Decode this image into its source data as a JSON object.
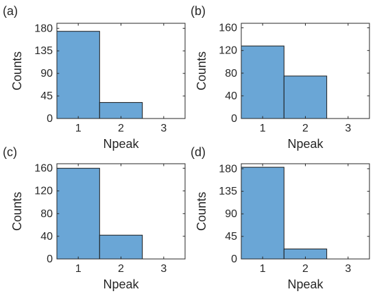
{
  "bar_color": "#6aa6d6",
  "edge_color": "#1a1a1a",
  "chart_data": [
    {
      "type": "bar",
      "panel_label": "(a)",
      "categories": [
        "1",
        "2",
        "3"
      ],
      "values": [
        174,
        32,
        0
      ],
      "xlabel": "Npeak",
      "ylabel": "Counts",
      "ylim": [
        0,
        190
      ],
      "yticks": [
        0,
        45,
        90,
        135,
        180
      ]
    },
    {
      "type": "bar",
      "panel_label": "(b)",
      "categories": [
        "1",
        "2",
        "3"
      ],
      "values": [
        128,
        75,
        0
      ],
      "xlabel": "Npeak",
      "ylabel": "Counts",
      "ylim": [
        0,
        168
      ],
      "yticks": [
        0,
        40,
        80,
        120,
        160
      ]
    },
    {
      "type": "bar",
      "panel_label": "(c)",
      "categories": [
        "1",
        "2",
        "3"
      ],
      "values": [
        160,
        42,
        0
      ],
      "xlabel": "Npeak",
      "ylabel": "Counts",
      "ylim": [
        0,
        168
      ],
      "yticks": [
        0,
        40,
        80,
        120,
        160
      ]
    },
    {
      "type": "bar",
      "panel_label": "(d)",
      "categories": [
        "1",
        "2",
        "3"
      ],
      "values": [
        183,
        20,
        0
      ],
      "xlabel": "Npeak",
      "ylabel": "Counts",
      "ylim": [
        0,
        190
      ],
      "yticks": [
        0,
        45,
        90,
        135,
        180
      ]
    }
  ]
}
